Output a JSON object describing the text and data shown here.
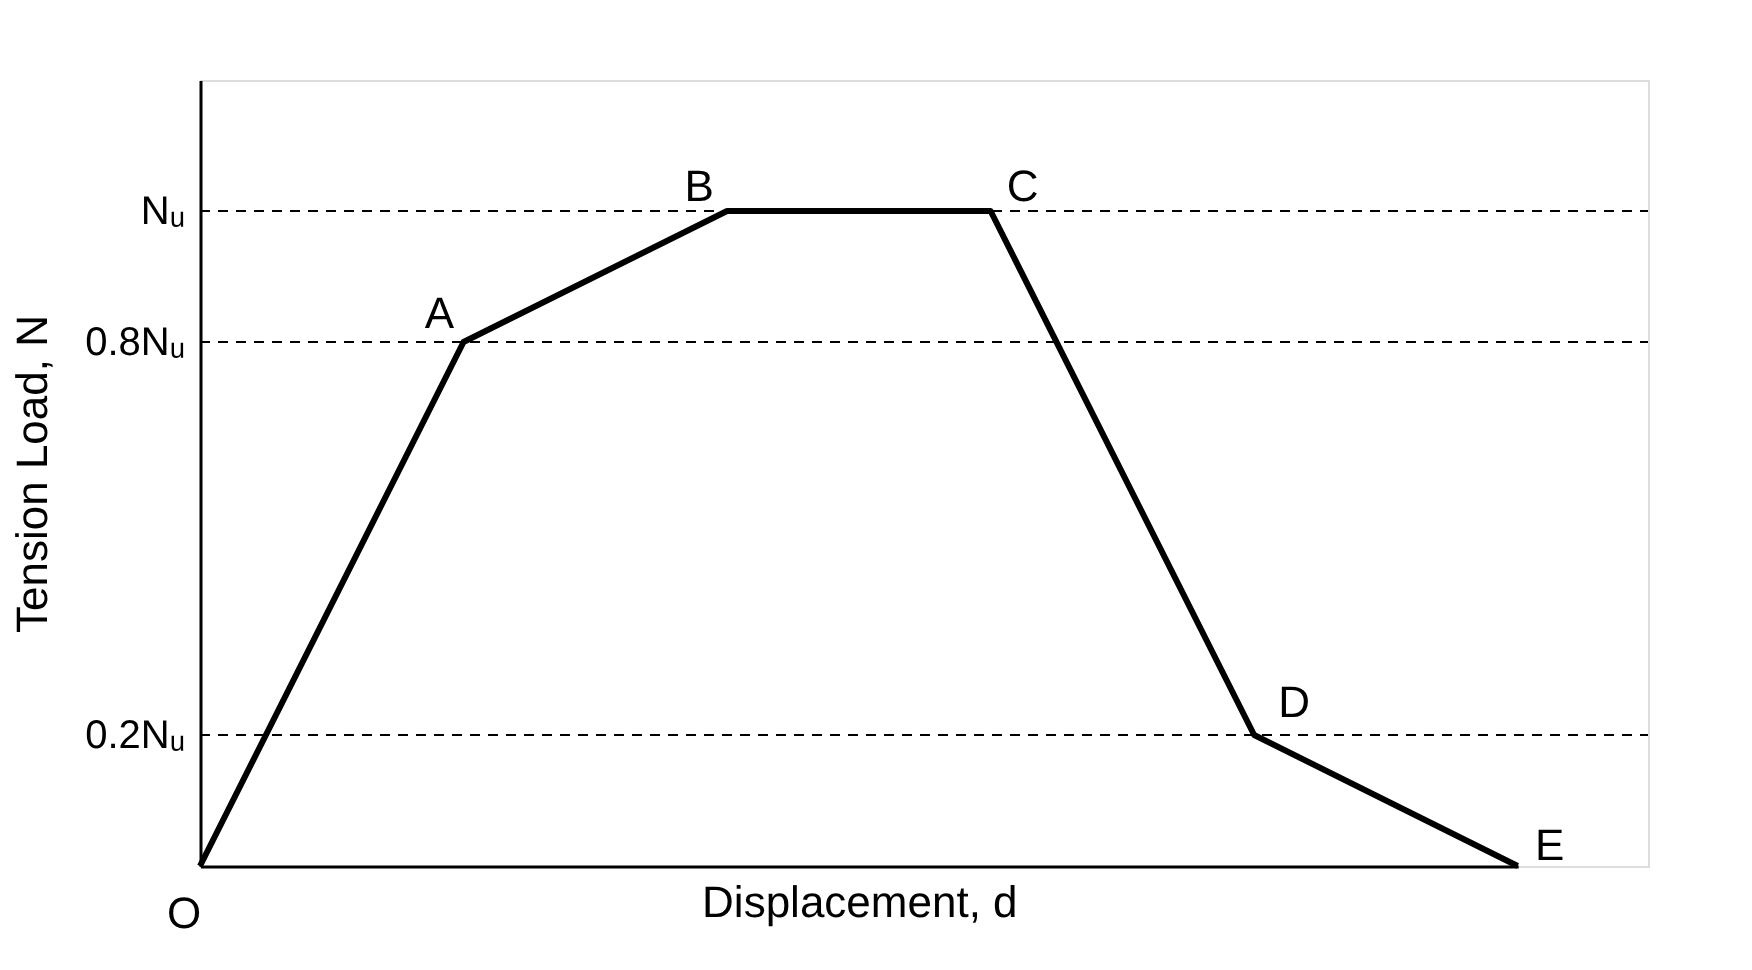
{
  "chart_data": {
    "type": "line",
    "xlabel": "Displacement, d",
    "ylabel": "Tension Load, N",
    "categories": [
      null,
      null,
      null,
      null,
      null,
      null
    ],
    "ylim": [
      0,
      1.2
    ],
    "yticks": [
      {
        "value": 0.2,
        "label": "0.2Nᵤ"
      },
      {
        "value": 0.8,
        "label": "0.8Nᵤ"
      },
      {
        "value": 1,
        "label": "Nᵤ"
      }
    ],
    "tick_labels": "y",
    "series": [
      {
        "color": "#000000",
        "line_style": "solid",
        "values": [
          0,
          0.8,
          1,
          1,
          0.2,
          0
        ]
      }
    ],
    "ref_lines": [
      {
        "axis": "y",
        "value": 1,
        "color": "#000000",
        "line_style": "dashed"
      },
      {
        "axis": "y",
        "value": 0.8,
        "color": "#000000",
        "line_style": "dashed"
      },
      {
        "axis": "y",
        "value": 0.2,
        "color": "#000000",
        "line_style": "dashed"
      }
    ],
    "annotations": [
      "O",
      "A",
      "B",
      "C",
      "D",
      "E"
    ]
  }
}
